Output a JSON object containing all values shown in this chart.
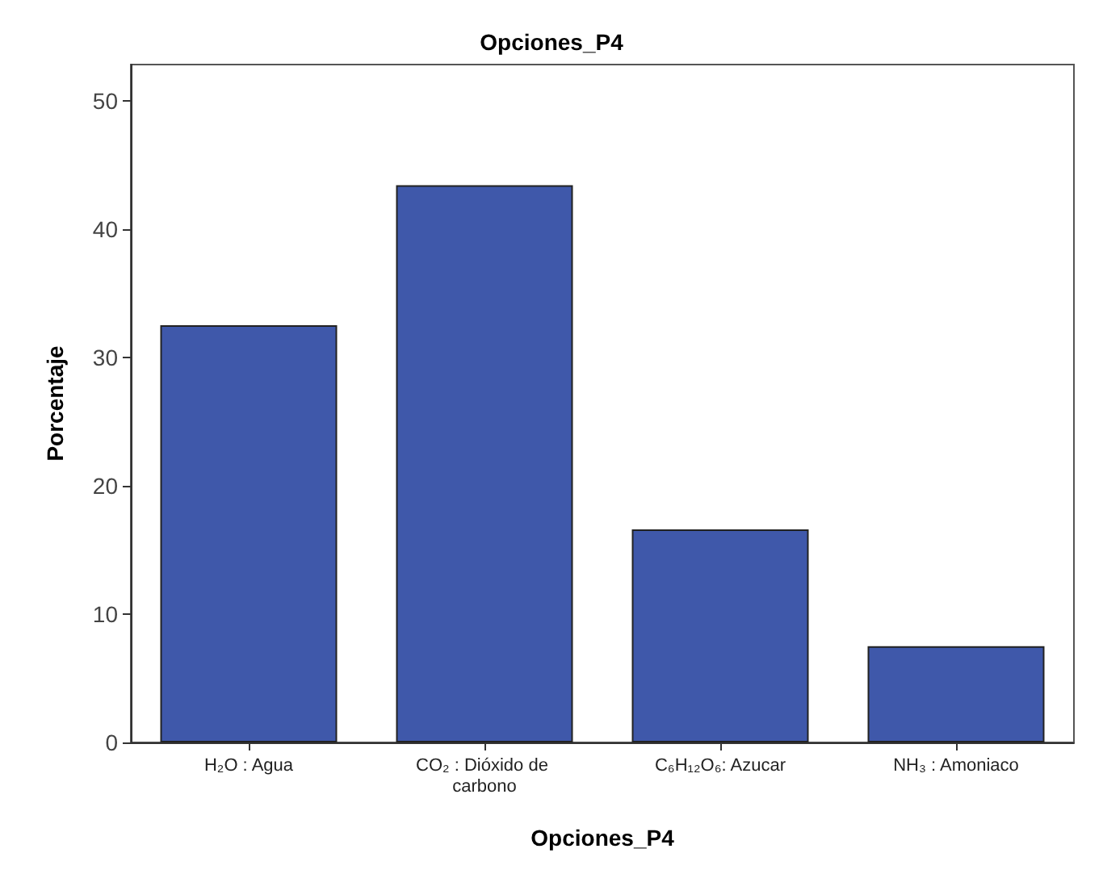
{
  "chart_data": {
    "type": "bar",
    "title": "Opciones_P4",
    "xlabel": "Opciones_P4",
    "ylabel": "Porcentaje",
    "categories": [
      "H₂O : Agua",
      "CO₂ : Dióxido de carbono",
      "C₆H₁₂O₆: Azucar",
      "NH₃ : Amoniaco"
    ],
    "values": [
      32.5,
      43.4,
      16.6,
      7.5
    ],
    "color": "#3f58aa",
    "ylim": [
      0,
      52.8
    ],
    "yticks": [
      0,
      10,
      20,
      30,
      40,
      50
    ],
    "grid": false
  }
}
